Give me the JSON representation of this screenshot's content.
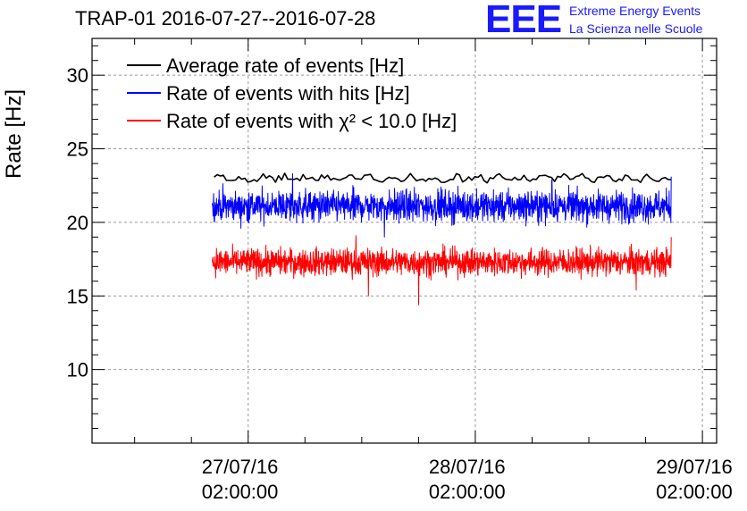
{
  "title": "TRAP-01 2016-07-27--2016-07-28",
  "logo": {
    "mark": "EEE",
    "line1": "Extreme Energy Events",
    "line2": "La Scienza nelle Scuole",
    "color": "#1a1aff"
  },
  "chart_data": {
    "type": "line",
    "title": "TRAP-01 2016-07-27--2016-07-28",
    "xlabel": "",
    "ylabel": "Rate [Hz]",
    "ylim": [
      5,
      32.5
    ],
    "yticks": [
      10,
      15,
      20,
      25,
      30
    ],
    "x_unit": "hours since 2016-07-27 02:00:00",
    "xlim": [
      -16.5,
      49.5
    ],
    "xticks": [
      {
        "x": 0,
        "label": [
          "27/07/16",
          "02:00:00"
        ]
      },
      {
        "x": 24,
        "label": [
          "28/07/16",
          "02:00:00"
        ]
      },
      {
        "x": 48,
        "label": [
          "29/07/16",
          "02:00:00"
        ]
      }
    ],
    "grid": true,
    "legend_position": "top-left",
    "series": [
      {
        "name": "Average rate of events [Hz]",
        "color": "#000000",
        "x_start": -3.6,
        "x_end": 44.7,
        "mean": 23.0,
        "noise": 0.35,
        "points": 150,
        "extremes": []
      },
      {
        "name": "Rate of events with hits [Hz]",
        "color": "#0000ff",
        "x_start": -3.8,
        "x_end": 44.7,
        "mean": 21.1,
        "noise": 0.8,
        "points": 1600,
        "extremes": [
          {
            "x": 14.4,
            "y": 19.0
          },
          {
            "x": 4.7,
            "y": 23.3
          },
          {
            "x": 32.1,
            "y": 22.9
          },
          {
            "x": 44.7,
            "y": 23.1
          }
        ]
      },
      {
        "name": "Rate of events with χ² < 10.0 [Hz]",
        "color": "#ff0000",
        "x_start": -3.8,
        "x_end": 44.7,
        "mean": 17.3,
        "noise": 0.7,
        "points": 1600,
        "extremes": [
          {
            "x": 18.0,
            "y": 14.4
          },
          {
            "x": 12.7,
            "y": 15.0
          },
          {
            "x": 11.4,
            "y": 19.1
          },
          {
            "x": 44.7,
            "y": 19.0
          },
          {
            "x": 41.0,
            "y": 15.4
          }
        ]
      }
    ]
  }
}
